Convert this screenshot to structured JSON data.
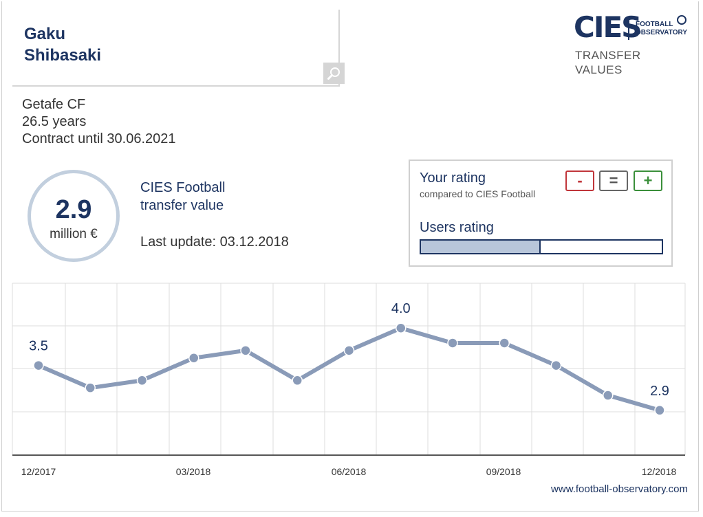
{
  "player": {
    "name": "Gaku\nShibasaki",
    "club": "Getafe CF",
    "age": "26.5 years",
    "contract": "Contract until 30.06.2021"
  },
  "brand": {
    "logo_text": "CIES",
    "logo_sub1": "FOOTBALL",
    "logo_sub2": "OBSERVATORY",
    "section": "TRANSFER\nVALUES",
    "url": "www.football-observatory.com"
  },
  "value": {
    "amount": "2.9",
    "unit": "million €",
    "title": "CIES Football\ntransfer value",
    "last_update": "Last update: 03.12.2018"
  },
  "rating": {
    "title": "Your rating",
    "subtitle": "compared to CIES Football",
    "minus_label": "-",
    "equal_label": "=",
    "plus_label": "+",
    "users_title": "Users rating",
    "users_fraction": 0.49
  },
  "colors": {
    "navy": "#1d3461",
    "line": "#8a9bb8",
    "grid": "#dddddd",
    "minus": "#c0353a",
    "plus": "#3a8f3a"
  },
  "chart_data": {
    "type": "line",
    "x": [
      "12/2017",
      "01/2018",
      "02/2018",
      "03/2018",
      "04/2018",
      "05/2018",
      "06/2018",
      "07/2018",
      "08/2018",
      "09/2018",
      "10/2018",
      "11/2018",
      "12/2018"
    ],
    "values": [
      3.5,
      3.2,
      3.3,
      3.6,
      3.7,
      3.3,
      3.7,
      4.0,
      3.8,
      3.8,
      3.5,
      3.1,
      2.9
    ],
    "tick_labels": [
      "12/2017",
      "03/2018",
      "06/2018",
      "09/2018",
      "12/2018"
    ],
    "labeled_points": [
      {
        "index": 0,
        "label": "3.5"
      },
      {
        "index": 7,
        "label": "4.0"
      },
      {
        "index": 12,
        "label": "2.9"
      }
    ],
    "ylim": [
      2.3,
      4.6
    ],
    "grid": true
  }
}
